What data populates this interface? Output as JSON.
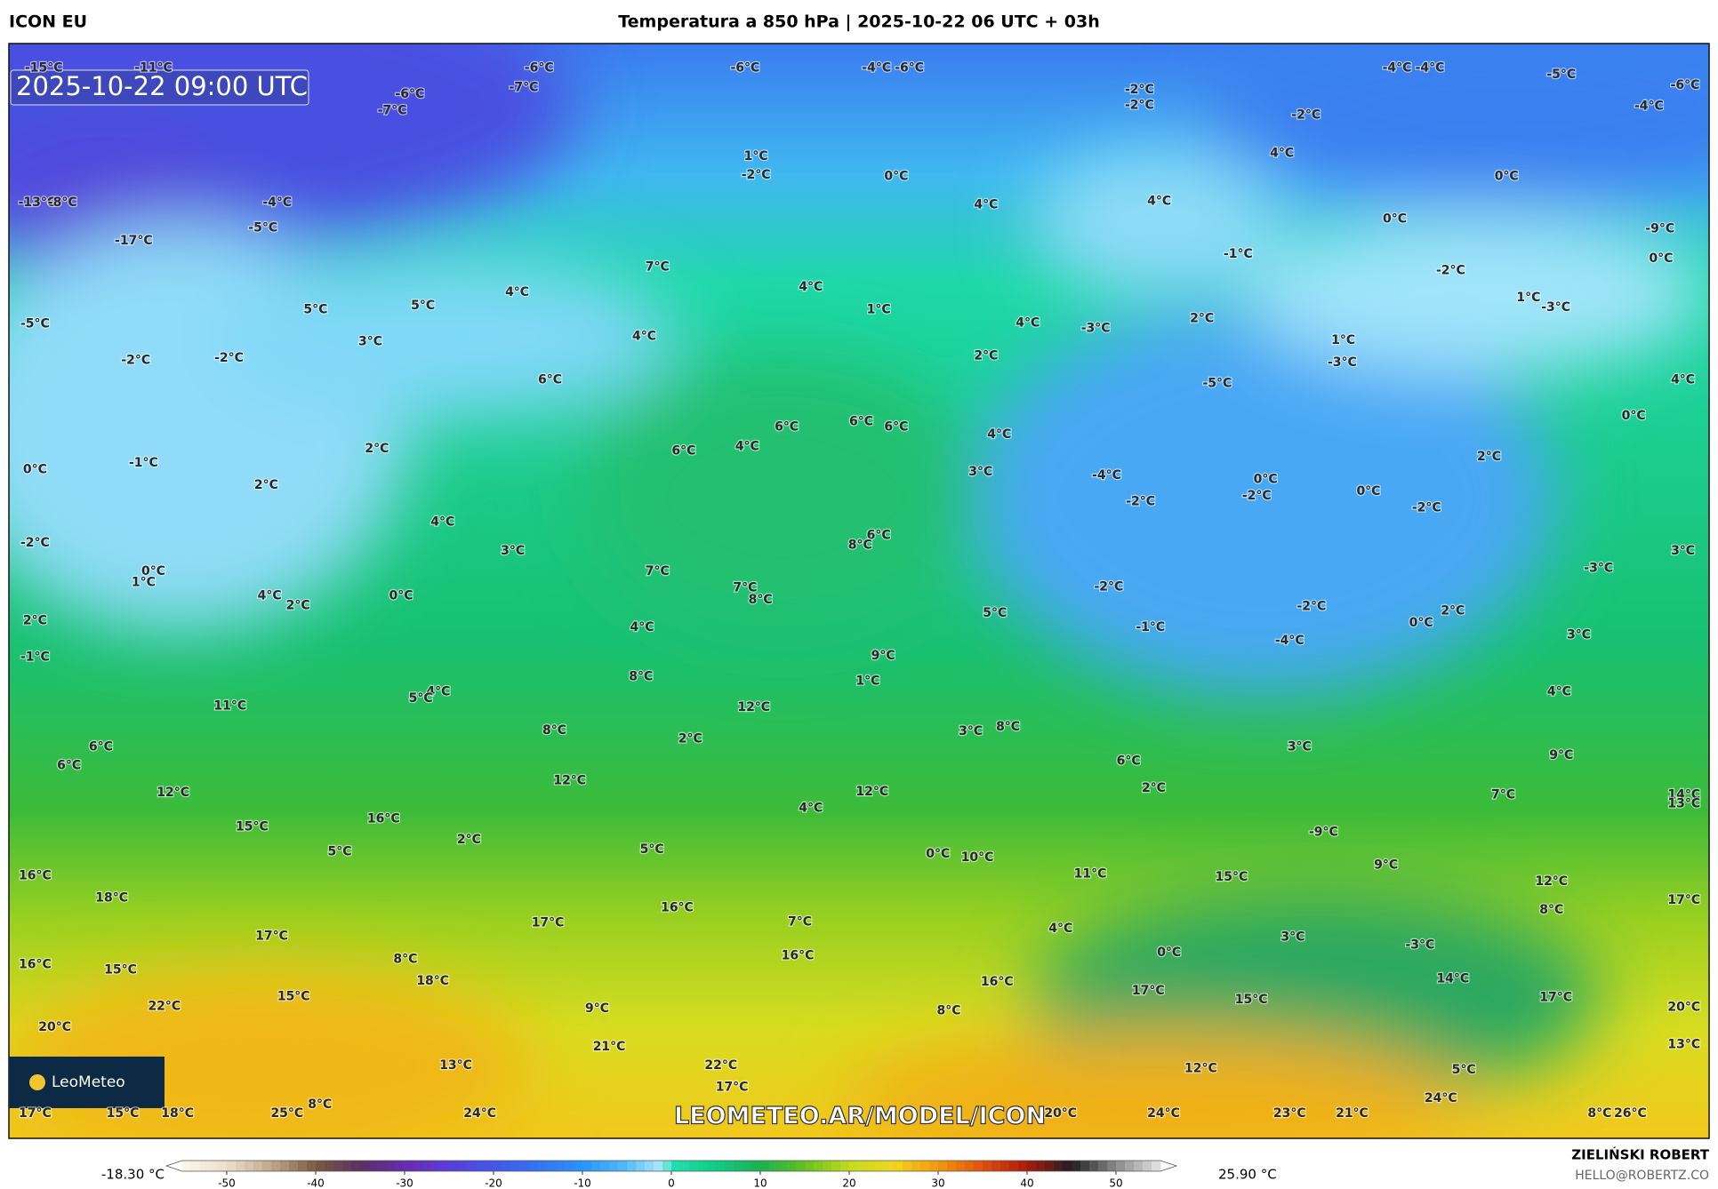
{
  "header": {
    "model": "ICON EU",
    "title": "Temperatura a 850 hPa | 2025-10-22 06 UTC + 03h"
  },
  "map": {
    "timestamp": "2025-10-22 09:00 UTC",
    "temperature_labels": [
      "-15°C",
      "-11°C",
      "-6°C",
      "-7°C",
      "-6°C",
      "-7°C",
      "-6°C",
      "-4°C",
      "-6°C",
      "-2°C",
      "-2°C",
      "-4°C",
      "-4°C",
      "-5°C",
      "-6°C",
      "-4°C",
      "-2°C",
      "4°C",
      "1°C",
      "-2°C",
      "0°C",
      "0°C",
      "-13°C",
      "-8°C",
      "-4°C",
      "4°C",
      "4°C",
      "-5°C",
      "-17°C",
      "0°C",
      "-9°C",
      "-1°C",
      "0°C",
      "7°C",
      "-2°C",
      "4°C",
      "4°C",
      "5°C",
      "5°C",
      "1°C",
      "1°C",
      "-3°C",
      "2°C",
      "-5°C",
      "4°C",
      "-3°C",
      "4°C",
      "3°C",
      "1°C",
      "-2°C",
      "-2°C",
      "2°C",
      "-3°C",
      "6°C",
      "-5°C",
      "4°C",
      "0°C",
      "6°C",
      "6°C",
      "6°C",
      "4°C",
      "4°C",
      "2°C",
      "6°C",
      "2°C",
      "-1°C",
      "0°C",
      "3°C",
      "-4°C",
      "0°C",
      "-2°C",
      "0°C",
      "2°C",
      "-2°C",
      "-2°C",
      "4°C",
      "6°C",
      "8°C",
      "-2°C",
      "3°C",
      "3°C",
      "-3°C",
      "0°C",
      "1°C",
      "7°C",
      "7°C",
      "8°C",
      "-2°C",
      "4°C",
      "2°C",
      "0°C",
      "-2°C",
      "2°C",
      "5°C",
      "2°C",
      "0°C",
      "4°C",
      "-1°C",
      "-4°C",
      "3°C",
      "-1°C",
      "9°C",
      "8°C",
      "1°C",
      "4°C",
      "5°C",
      "4°C",
      "11°C",
      "12°C",
      "8°C",
      "3°C",
      "8°C",
      "2°C",
      "6°C",
      "3°C",
      "6°C",
      "9°C",
      "6°C",
      "12°C",
      "2°C",
      "12°C",
      "12°C",
      "7°C",
      "14°C",
      "13°C",
      "4°C",
      "16°C",
      "15°C",
      "-9°C",
      "2°C",
      "5°C",
      "5°C",
      "0°C",
      "10°C",
      "9°C",
      "16°C",
      "11°C",
      "15°C",
      "12°C",
      "18°C",
      "17°C",
      "16°C",
      "8°C",
      "17°C",
      "7°C",
      "4°C",
      "17°C",
      "3°C",
      "-3°C",
      "0°C",
      "16°C",
      "8°C",
      "16°C",
      "15°C",
      "18°C",
      "14°C",
      "16°C",
      "17°C",
      "15°C",
      "17°C",
      "15°C",
      "22°C",
      "9°C",
      "8°C",
      "20°C",
      "20°C",
      "21°C",
      "13°C",
      "13°C",
      "22°C",
      "12°C",
      "5°C",
      "17°C",
      "24°C",
      "8°C",
      "17°C",
      "15°C",
      "18°C",
      "25°C",
      "24°C",
      "20°C",
      "24°C",
      "23°C",
      "21°C",
      "8°C",
      "26°C"
    ],
    "watermark": "LEOMETEO.AR/MODEL/ICON",
    "logo": "LeoMeteo"
  },
  "colorbar": {
    "min_label": "-18.30 °C",
    "max_label": "25.90 °C",
    "ticks": [
      -50,
      -40,
      -30,
      -20,
      -10,
      0,
      10,
      20,
      30,
      40,
      50
    ]
  },
  "credits": {
    "author": "ZIELIŃSKI ROBERT",
    "email": "HELLO@ROBERTZ.CO"
  }
}
